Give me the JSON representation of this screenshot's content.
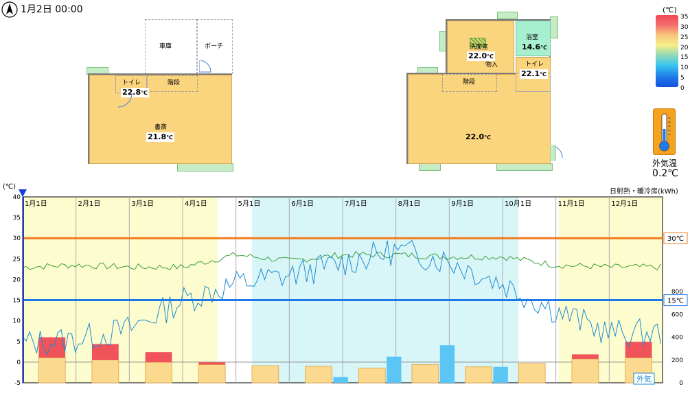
{
  "header": {
    "datetime": "1月2日 00:00"
  },
  "floor1": {
    "garage": "車庫",
    "porch": "ポーチ",
    "toilet": {
      "name": "トイレ",
      "temp": "22.8"
    },
    "stairs": "階段",
    "study": {
      "name": "書斎",
      "temp": "21.8"
    }
  },
  "floor2": {
    "washroom": {
      "name": "洗面室",
      "temp": "22.0"
    },
    "bath": {
      "name": "浴室",
      "temp": "14.6"
    },
    "storage": "物入",
    "toilet": {
      "name": "トイレ",
      "temp": "22.1"
    },
    "stairs": "階段",
    "main": {
      "temp": "22.0"
    }
  },
  "units": {
    "celsius": "℃"
  },
  "legend": {
    "unit": "(℃)",
    "ticks": [
      "35",
      "30",
      "25",
      "20",
      "15",
      "10",
      "5",
      "0"
    ]
  },
  "outdoor": {
    "label": "外気温",
    "temp": "0.2℃"
  },
  "chart_data": {
    "type": "line",
    "y_unit": "(℃)",
    "y2_title": "日射熱・暖冷房(kWh)",
    "ylim": [
      -5,
      40
    ],
    "yticks": [
      "40",
      "35",
      "30",
      "25",
      "20",
      "15",
      "10",
      "5",
      "0",
      "-5"
    ],
    "y2ticks": [
      "800",
      "600",
      "400",
      "200",
      "0"
    ],
    "y2lim": [
      0,
      800
    ],
    "months": [
      "1月1日",
      "2月1日",
      "3月1日",
      "4月1日",
      "5月1日",
      "6月1日",
      "7月1日",
      "8月1日",
      "9月1日",
      "10月1日",
      "11月1日",
      "12月1日"
    ],
    "hlines": [
      {
        "value": 30,
        "label": "30℃",
        "color": "#f07a1a"
      },
      {
        "value": 15,
        "label": "15℃",
        "color": "#1e78e6"
      }
    ],
    "outdoor_label": "外気",
    "indoor_monthly": [
      23,
      23.5,
      23,
      23,
      26,
      24.5,
      26,
      26,
      25.5,
      25.5,
      23.5,
      23
    ],
    "outdoor_monthly": [
      4.5,
      5.5,
      8,
      15,
      19,
      21,
      24,
      27,
      24.5,
      19,
      12.5,
      7
    ],
    "solar_kwh": [
      220,
      200,
      180,
      160,
      150,
      145,
      130,
      160,
      140,
      170,
      210,
      220
    ],
    "heating_kwh": [
      180,
      140,
      90,
      20,
      0,
      0,
      0,
      0,
      0,
      0,
      40,
      140
    ],
    "cooling_kwh": [
      0,
      0,
      0,
      0,
      0,
      50,
      230,
      330,
      140,
      0,
      0,
      0
    ],
    "colors": {
      "solar": "#fbd98f",
      "heating": "#f0545a",
      "cooling": "#5bc5f5",
      "indoor": "#3aa03a",
      "outdoor": "#1e8ad0",
      "heat_season": "#fdfccf",
      "cool_season": "#d8f6f8"
    }
  }
}
